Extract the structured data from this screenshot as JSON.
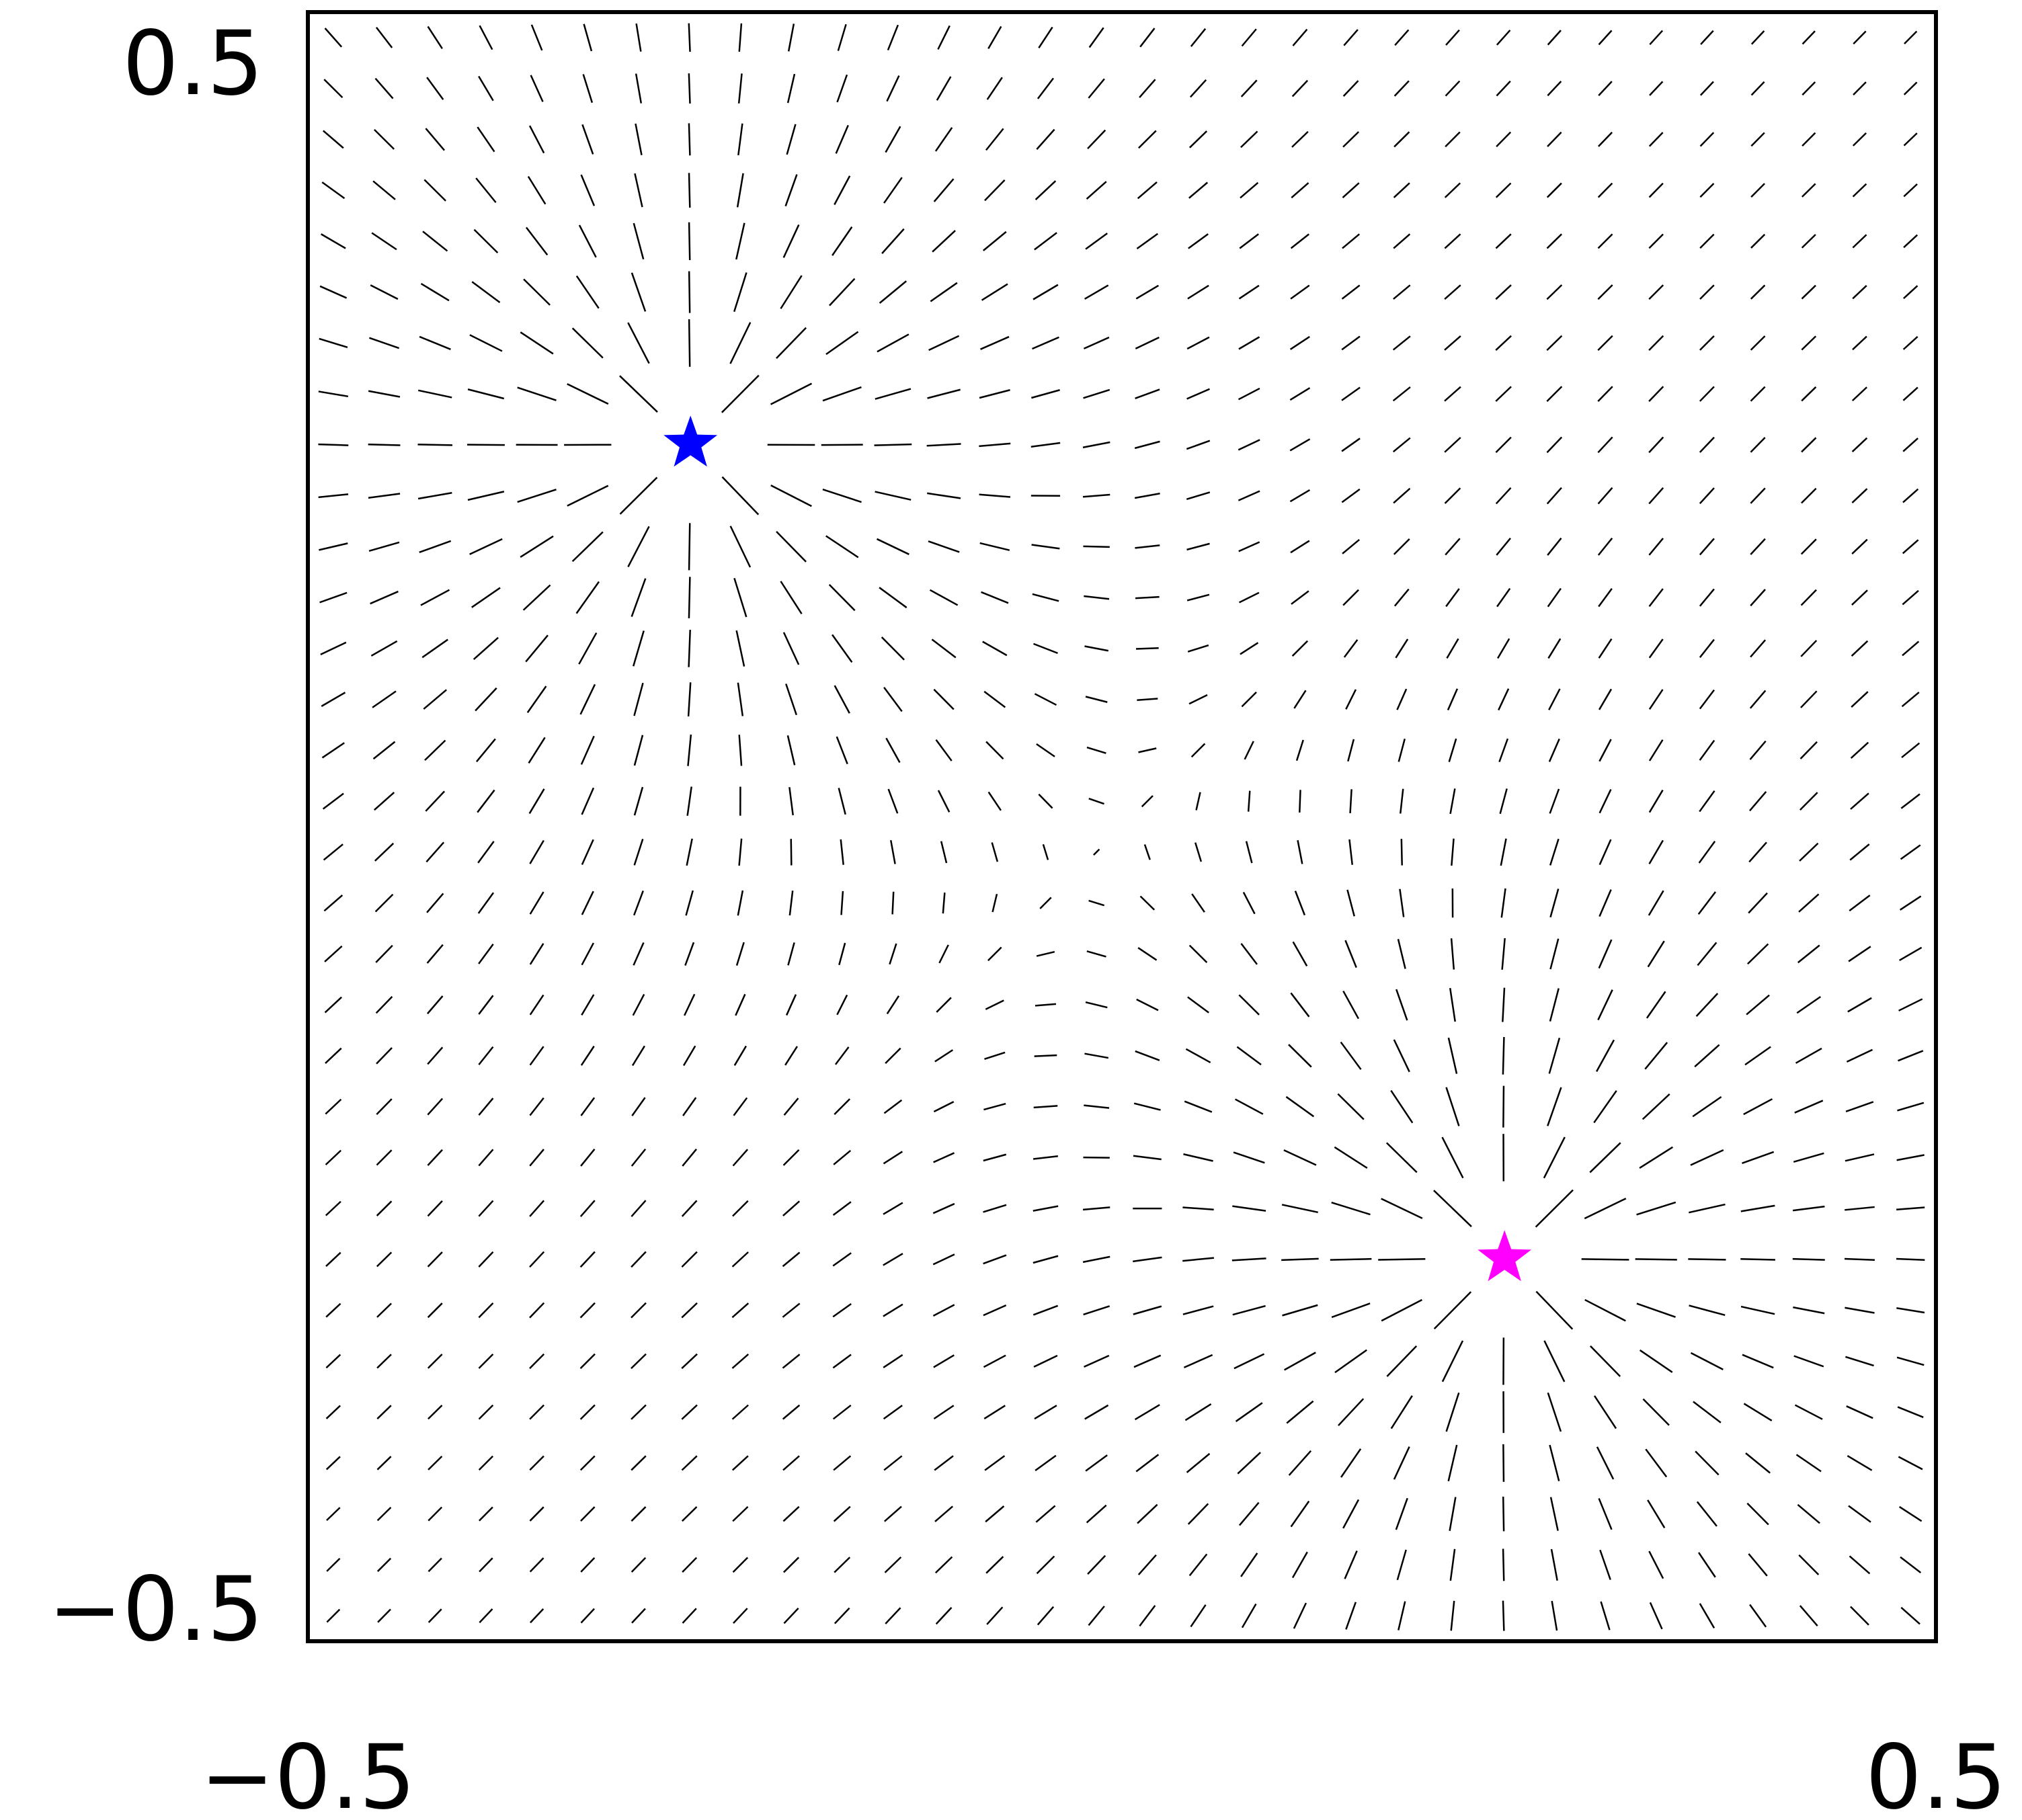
{
  "chart_data": {
    "type": "scatter",
    "title": "",
    "xlabel": "",
    "ylabel": "",
    "xlim": [
      -0.5,
      0.5
    ],
    "ylim": [
      -0.5,
      0.5
    ],
    "grid": false,
    "x_tick_labels": [
      "−0.5",
      "0.5"
    ],
    "y_tick_labels": [
      "−0.5",
      "0.5"
    ],
    "field": {
      "kind": "orientation-field",
      "grid_spacing": 0.03125,
      "segment_color": "#000000",
      "charges": [
        {
          "x": -0.265,
          "y": 0.235,
          "strength": 1
        },
        {
          "x": 0.235,
          "y": -0.265,
          "strength": 1
        }
      ]
    },
    "series": [
      {
        "marker": "star",
        "color": "#0000ff",
        "points": [
          {
            "x": -0.265,
            "y": 0.235
          }
        ]
      },
      {
        "marker": "star",
        "color": "#ff00ff",
        "points": [
          {
            "x": 0.235,
            "y": -0.265
          }
        ]
      }
    ]
  }
}
